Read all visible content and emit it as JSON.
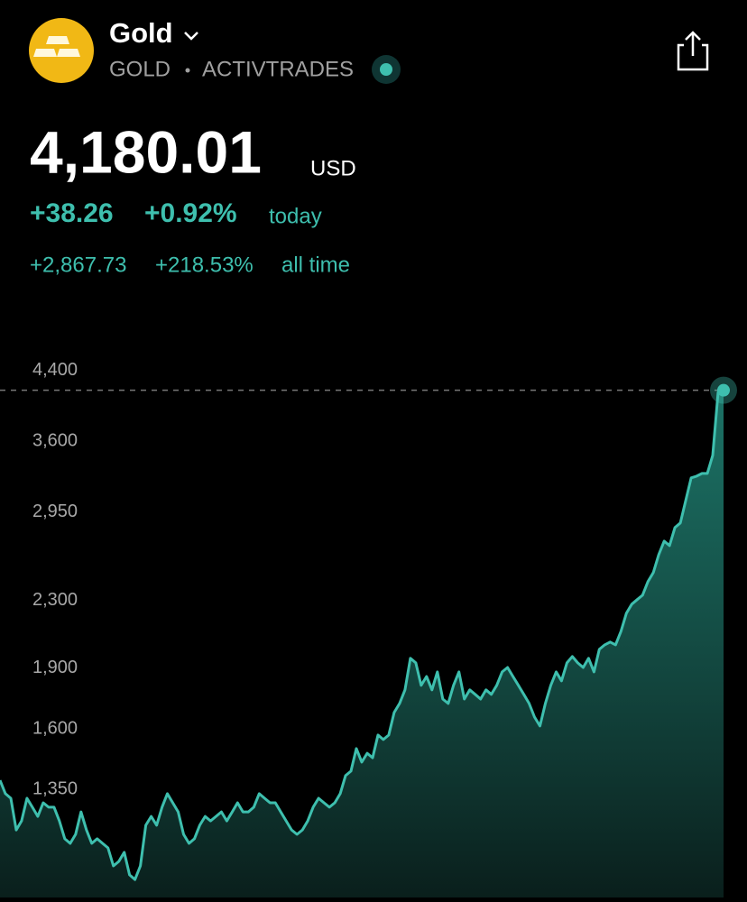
{
  "header": {
    "title": "Gold",
    "symbol": "GOLD",
    "exchange": "ACTIVTRADES"
  },
  "quote": {
    "price": "4,180.01",
    "currency": "USD",
    "change": "+38.26",
    "change_percent": "+0.92%",
    "change_period": "today",
    "all_time_change": "+2,867.73",
    "all_time_percent": "+218.53%",
    "all_time_period": "all time"
  },
  "chart_data": {
    "type": "area",
    "log_scale": true,
    "color": "#3ebfae",
    "ylim": [
      1000,
      4600
    ],
    "yticks": [
      {
        "value": 1350,
        "label": "1,350"
      },
      {
        "value": 1600,
        "label": "1,600"
      },
      {
        "value": 1900,
        "label": "1,900"
      },
      {
        "value": 2300,
        "label": "2,300"
      },
      {
        "value": 2950,
        "label": "2,950"
      },
      {
        "value": 3600,
        "label": "3,600"
      },
      {
        "value": 4400,
        "label": "4,400"
      }
    ],
    "values": [
      1392,
      1340,
      1323,
      1210,
      1241,
      1323,
      1290,
      1257,
      1306,
      1290,
      1290,
      1241,
      1180,
      1165,
      1195,
      1273,
      1210,
      1165,
      1180,
      1165,
      1150,
      1093,
      1107,
      1136,
      1066,
      1052,
      1093,
      1226,
      1257,
      1226,
      1290,
      1340,
      1306,
      1273,
      1195,
      1165,
      1180,
      1226,
      1257,
      1241,
      1257,
      1273,
      1241,
      1273,
      1306,
      1273,
      1273,
      1290,
      1340,
      1323,
      1306,
      1306,
      1273,
      1241,
      1210,
      1195,
      1210,
      1241,
      1290,
      1323,
      1306,
      1290,
      1306,
      1340,
      1410,
      1428,
      1522,
      1465,
      1502,
      1483,
      1581,
      1561,
      1581,
      1685,
      1728,
      1796,
      1963,
      1938,
      1819,
      1865,
      1796,
      1889,
      1750,
      1728,
      1819,
      1889,
      1750,
      1796,
      1773,
      1750,
      1796,
      1773,
      1819,
      1889,
      1913,
      1865,
      1819,
      1773,
      1728,
      1663,
      1622,
      1728,
      1819,
      1889,
      1842,
      1938,
      1973,
      1938,
      1913,
      1963,
      1889,
      2013,
      2039,
      2055,
      2039,
      2118,
      2229,
      2287,
      2316,
      2345,
      2437,
      2500,
      2630,
      2732,
      2697,
      2838,
      2875,
      3064,
      3265,
      3281,
      3306,
      3306,
      3479,
      4157,
      4180.01
    ]
  }
}
